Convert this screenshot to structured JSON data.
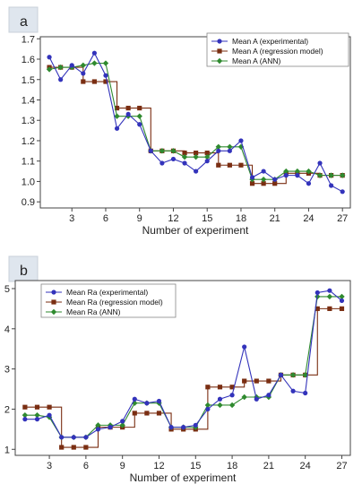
{
  "chart_data": [
    {
      "type": "line",
      "panel_label": "a",
      "xlabel": "Number of experiment",
      "ylabel": "",
      "x": [
        1,
        2,
        3,
        4,
        5,
        6,
        7,
        8,
        9,
        10,
        11,
        12,
        13,
        14,
        15,
        16,
        17,
        18,
        19,
        20,
        21,
        22,
        23,
        24,
        25,
        26,
        27
      ],
      "xticks": [
        3,
        6,
        9,
        12,
        15,
        18,
        21,
        24,
        27
      ],
      "xticks_labels": [
        "3",
        "6",
        "9",
        "12",
        "15",
        "18",
        "21",
        "24",
        "27"
      ],
      "xlim": [
        0.2,
        27.7
      ],
      "yticks": [
        0.9,
        1.0,
        1.1,
        1.2,
        1.3,
        1.4,
        1.5,
        1.6,
        1.7
      ],
      "yticks_labels": [
        "0.9",
        "1.0",
        "1.1",
        "1.2",
        "1.3",
        "1.4",
        "1.5",
        "1.6",
        "1.7"
      ],
      "ylim": [
        0.87,
        1.71
      ],
      "legend_position": "top-right",
      "series": [
        {
          "name": "Mean   A (experimental)",
          "color": "#3333bb",
          "marker": "circle",
          "style": "line",
          "values": [
            1.61,
            1.5,
            1.57,
            1.53,
            1.63,
            1.52,
            1.26,
            1.33,
            1.28,
            1.15,
            1.09,
            1.11,
            1.09,
            1.05,
            1.1,
            1.15,
            1.15,
            1.2,
            1.02,
            1.05,
            1.01,
            1.03,
            1.03,
            0.99,
            1.09,
            0.98,
            0.95
          ]
        },
        {
          "name": "Mean   A (regression model)",
          "color": "#7a2e12",
          "marker": "square",
          "style": "step",
          "values": [
            1.56,
            1.56,
            1.56,
            1.49,
            1.49,
            1.49,
            1.36,
            1.36,
            1.36,
            1.15,
            1.15,
            1.15,
            1.14,
            1.14,
            1.14,
            1.08,
            1.08,
            1.08,
            0.99,
            0.99,
            0.99,
            1.04,
            1.04,
            1.04,
            1.03,
            1.03,
            1.03
          ]
        },
        {
          "name": "Mean   A (ANN)",
          "color": "#2f8a2f",
          "marker": "diamond",
          "style": "line",
          "values": [
            1.55,
            1.56,
            1.56,
            1.57,
            1.58,
            1.58,
            1.32,
            1.32,
            1.32,
            1.15,
            1.15,
            1.15,
            1.12,
            1.12,
            1.12,
            1.17,
            1.17,
            1.17,
            1.01,
            1.01,
            1.01,
            1.05,
            1.05,
            1.05,
            1.03,
            1.03,
            1.03
          ]
        }
      ]
    },
    {
      "type": "line",
      "panel_label": "b",
      "xlabel": "Number of experiment",
      "ylabel": "",
      "x": [
        1,
        2,
        3,
        4,
        5,
        6,
        7,
        8,
        9,
        10,
        11,
        12,
        13,
        14,
        15,
        16,
        17,
        18,
        19,
        20,
        21,
        22,
        23,
        24,
        25,
        26,
        27
      ],
      "xticks": [
        3,
        6,
        9,
        12,
        15,
        18,
        21,
        24,
        27
      ],
      "xticks_labels": [
        "3",
        "6",
        "9",
        "12",
        "15",
        "18",
        "21",
        "24",
        "27"
      ],
      "xlim": [
        0.2,
        27.7
      ],
      "yticks": [
        1,
        2,
        3,
        4,
        5
      ],
      "yticks_labels": [
        "1",
        "2",
        "3",
        "4",
        "5"
      ],
      "ylim": [
        0.85,
        5.2
      ],
      "legend_position": "top-left",
      "series": [
        {
          "name": "Mean Ra (experimental)",
          "color": "#3333bb",
          "marker": "circle",
          "style": "line",
          "values": [
            1.75,
            1.75,
            1.85,
            1.3,
            1.3,
            1.3,
            1.5,
            1.55,
            1.7,
            2.25,
            2.15,
            2.2,
            1.55,
            1.55,
            1.6,
            2.0,
            2.25,
            2.35,
            3.55,
            2.25,
            2.35,
            2.85,
            2.45,
            2.4,
            4.9,
            4.95,
            4.7
          ]
        },
        {
          "name": "Mean Ra (regression model)",
          "color": "#7a2e12",
          "marker": "square",
          "style": "step",
          "values": [
            2.05,
            2.05,
            2.05,
            1.05,
            1.05,
            1.05,
            1.55,
            1.55,
            1.55,
            1.9,
            1.9,
            1.9,
            1.5,
            1.5,
            1.5,
            2.55,
            2.55,
            2.55,
            2.7,
            2.7,
            2.7,
            2.85,
            2.85,
            2.85,
            4.5,
            4.5,
            4.5
          ]
        },
        {
          "name": "Mean Ra (ANN)",
          "color": "#2f8a2f",
          "marker": "diamond",
          "style": "line",
          "values": [
            1.85,
            1.85,
            1.8,
            1.3,
            1.3,
            1.3,
            1.6,
            1.6,
            1.6,
            2.15,
            2.15,
            2.15,
            1.55,
            1.55,
            1.55,
            2.1,
            2.1,
            2.1,
            2.3,
            2.3,
            2.3,
            2.85,
            2.85,
            2.85,
            4.8,
            4.8,
            4.8
          ]
        }
      ]
    }
  ]
}
